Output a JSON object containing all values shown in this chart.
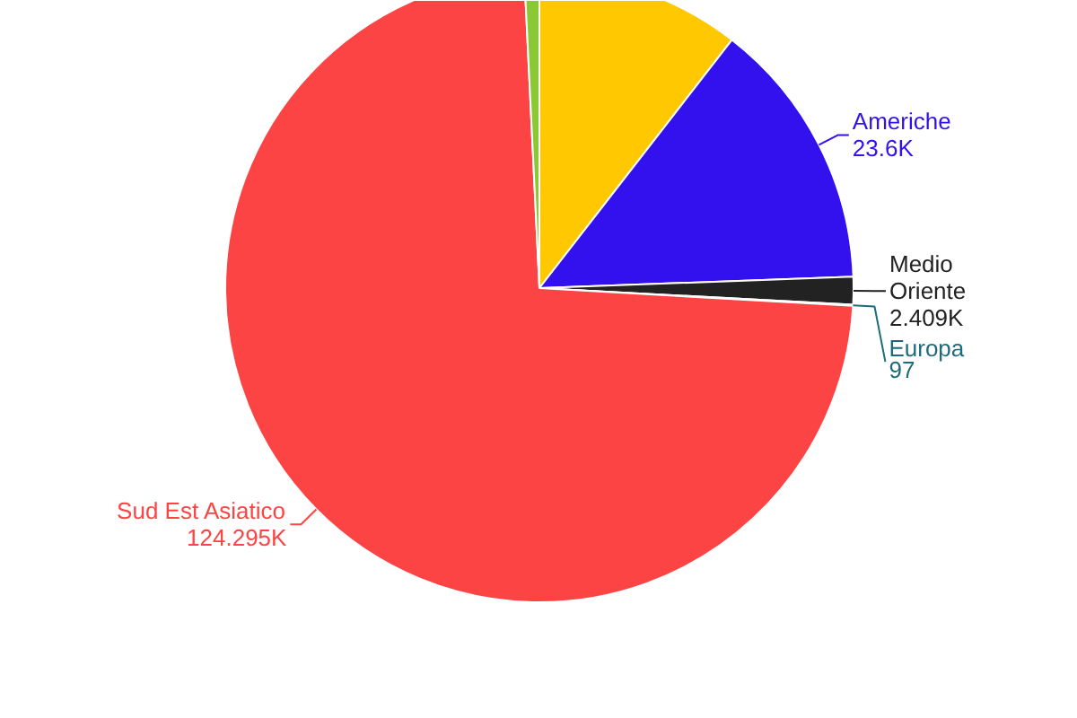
{
  "chart_data": {
    "type": "pie",
    "categories": [
      null,
      "Americhe",
      "Medio Oriente",
      "Europa",
      "Sud Est Asiatico",
      null
    ],
    "values": [
      17800,
      23600,
      2409,
      97,
      124295,
      1300
    ],
    "value_labels": [
      null,
      "23.6K",
      "2.409K",
      "97",
      "124.295K",
      null
    ],
    "colors": [
      "#ffc800",
      "#3311ee",
      "#222222",
      "#1e6b7b",
      "#fd4444",
      "#8bc934"
    ]
  }
}
